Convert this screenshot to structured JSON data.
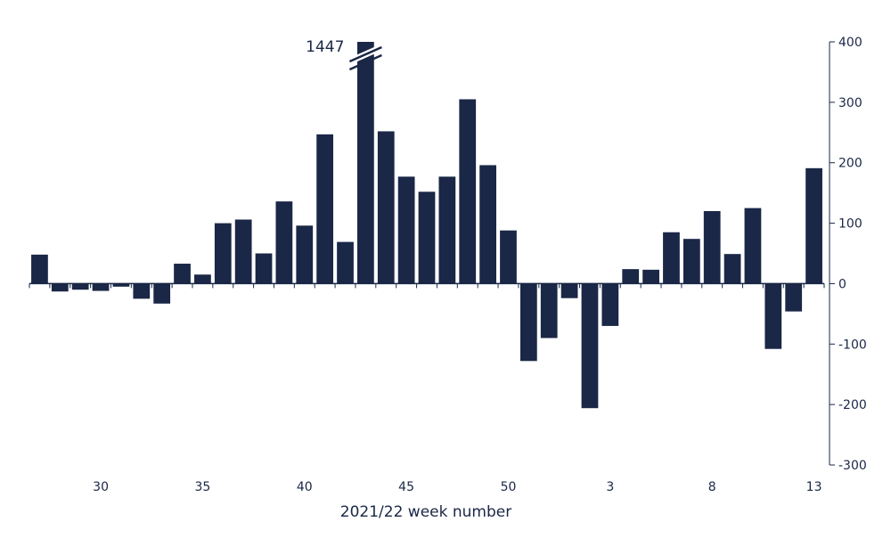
{
  "chart_data": {
    "type": "bar",
    "title": "",
    "xlabel": "2021/22 week number",
    "ylabel": "",
    "ylim": [
      -300,
      400
    ],
    "y_ticks": [
      400,
      300,
      200,
      100,
      0,
      -100,
      -200,
      -300
    ],
    "x_tick_labels": [
      {
        "week": 30,
        "label": "30"
      },
      {
        "week": 35,
        "label": "35"
      },
      {
        "week": 40,
        "label": "40"
      },
      {
        "week": 45,
        "label": "45"
      },
      {
        "week": 50,
        "label": "50"
      },
      {
        "week": 3,
        "label": "3"
      },
      {
        "week": 8,
        "label": "8"
      },
      {
        "week": 13,
        "label": "13"
      }
    ],
    "y_axis_side": "right",
    "grid": false,
    "legend": "none",
    "bar_color": "#1a2746",
    "categories": [
      27,
      28,
      29,
      30,
      31,
      32,
      33,
      34,
      35,
      36,
      37,
      38,
      39,
      40,
      41,
      42,
      43,
      44,
      45,
      46,
      47,
      48,
      49,
      50,
      51,
      52,
      1,
      2,
      3,
      4,
      5,
      6,
      7,
      8,
      9,
      10,
      11,
      12,
      13
    ],
    "values": [
      48,
      -13,
      -10,
      -12,
      -5,
      -25,
      -33,
      33,
      15,
      100,
      106,
      50,
      136,
      96,
      247,
      69,
      1447,
      252,
      177,
      152,
      177,
      305,
      196,
      88,
      -128,
      -90,
      -24,
      -206,
      -70,
      24,
      23,
      85,
      74,
      120,
      49,
      125,
      -108,
      -46,
      191
    ],
    "annotations": [
      {
        "week": 43,
        "text": "1447",
        "note": "bar truncated at 400 (axis break)"
      }
    ]
  }
}
